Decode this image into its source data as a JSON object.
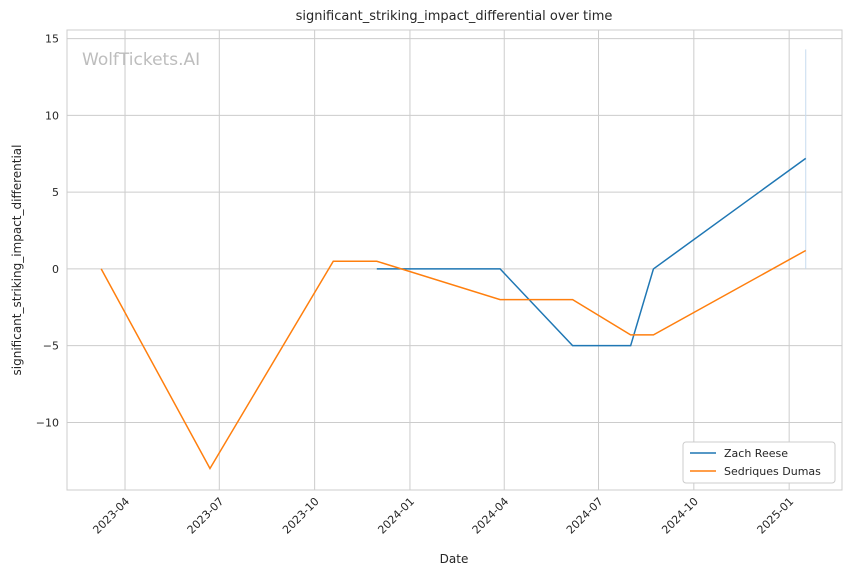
{
  "chart_data": {
    "type": "line",
    "title": "significant_striking_impact_differential over time",
    "xlabel": "Date",
    "ylabel": "significant_striking_impact_differential",
    "watermark": "WolfTickets.AI",
    "xlim": [
      "2023-02-04",
      "2025-02-21"
    ],
    "ylim": [
      -14.4,
      15.56
    ],
    "grid": true,
    "legend_position": "bottom-right",
    "x_ticks": [
      "2023-04",
      "2023-07",
      "2023-10",
      "2024-01",
      "2024-04",
      "2024-07",
      "2024-10",
      "2025-01"
    ],
    "y_ticks": [
      15,
      10,
      5,
      0,
      -5,
      -10
    ],
    "y_tick_labels": [
      "15",
      "10",
      "5",
      "0",
      "−5",
      "−10"
    ],
    "series": [
      {
        "name": "Zach Reese",
        "color": "#1f77b4",
        "x": [
          "2023-11-30",
          "2024-03-28",
          "2024-06-06",
          "2024-08-01",
          "2024-08-23",
          "2025-01-17"
        ],
        "y": [
          0,
          0,
          -5,
          -5,
          0,
          7.2
        ]
      },
      {
        "name": "Sedriques Dumas",
        "color": "#ff7f0e",
        "x": [
          "2023-03-09",
          "2023-06-22",
          "2023-10-19",
          "2023-11-30",
          "2024-03-28",
          "2024-06-06",
          "2024-08-01",
          "2024-08-23",
          "2025-01-17"
        ],
        "y": [
          0,
          -13,
          0.5,
          0.5,
          -2,
          -2,
          -4.3,
          -4.3,
          1.2
        ]
      }
    ],
    "vertical_marker": {
      "x": "2025-01-17",
      "y_range": [
        0,
        14.3
      ],
      "color": "#c6dbef"
    }
  }
}
